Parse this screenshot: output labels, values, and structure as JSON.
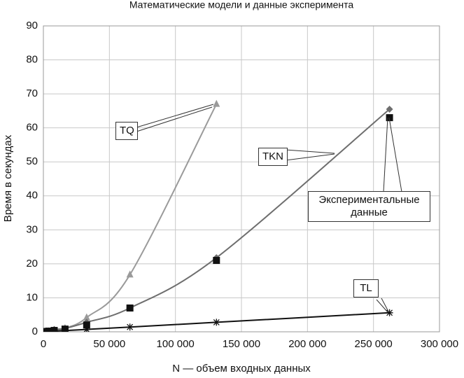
{
  "chart_data": {
    "type": "line",
    "title": "Математические модели и данные эксперимента",
    "x_label": "N — объем входных данных",
    "y_label": "Время в секундах",
    "x": [
      1024,
      2048,
      4096,
      8192,
      16384,
      32768,
      65536,
      131072,
      262144
    ],
    "series": [
      {
        "name": "TQ",
        "color": "#9a9a9a",
        "marker": "triangle",
        "line": true,
        "values": [
          0.004,
          0.02,
          0.07,
          0.26,
          1.05,
          4.2,
          16.8,
          67,
          null
        ]
      },
      {
        "name": "TKN",
        "color": "#6e6e6e",
        "marker": "diamond",
        "line": true,
        "values": [
          0.03,
          0.09,
          0.25,
          0.7,
          1.0,
          2.8,
          7.0,
          21.8,
          65.5
        ]
      },
      {
        "name": "Экспериментальные данные",
        "color": "#111111",
        "marker": "square",
        "line": false,
        "values": [
          0.05,
          0.1,
          0.2,
          0.4,
          0.8,
          2.0,
          7.0,
          21.0,
          63.0
        ]
      },
      {
        "name": "TL",
        "color": "#111111",
        "marker": "asterisk",
        "line": true,
        "values": [
          0.02,
          0.04,
          0.09,
          0.17,
          0.35,
          0.7,
          1.4,
          2.8,
          5.6
        ]
      }
    ],
    "xlim": [
      0,
      300000
    ],
    "xticks": [
      0,
      {
        "value": 50000,
        "label": "50 000"
      },
      {
        "value": 100000,
        "label": "100 000"
      },
      {
        "value": 150000,
        "label": "150 000"
      },
      {
        "value": 200000,
        "label": "200 000"
      },
      {
        "value": 250000,
        "label": "250 000"
      },
      {
        "value": 300000,
        "label": "300 000"
      }
    ],
    "ylim": [
      0,
      90
    ],
    "yticks": [
      0,
      10,
      20,
      30,
      40,
      50,
      60,
      70,
      80,
      90
    ],
    "grid": true
  }
}
